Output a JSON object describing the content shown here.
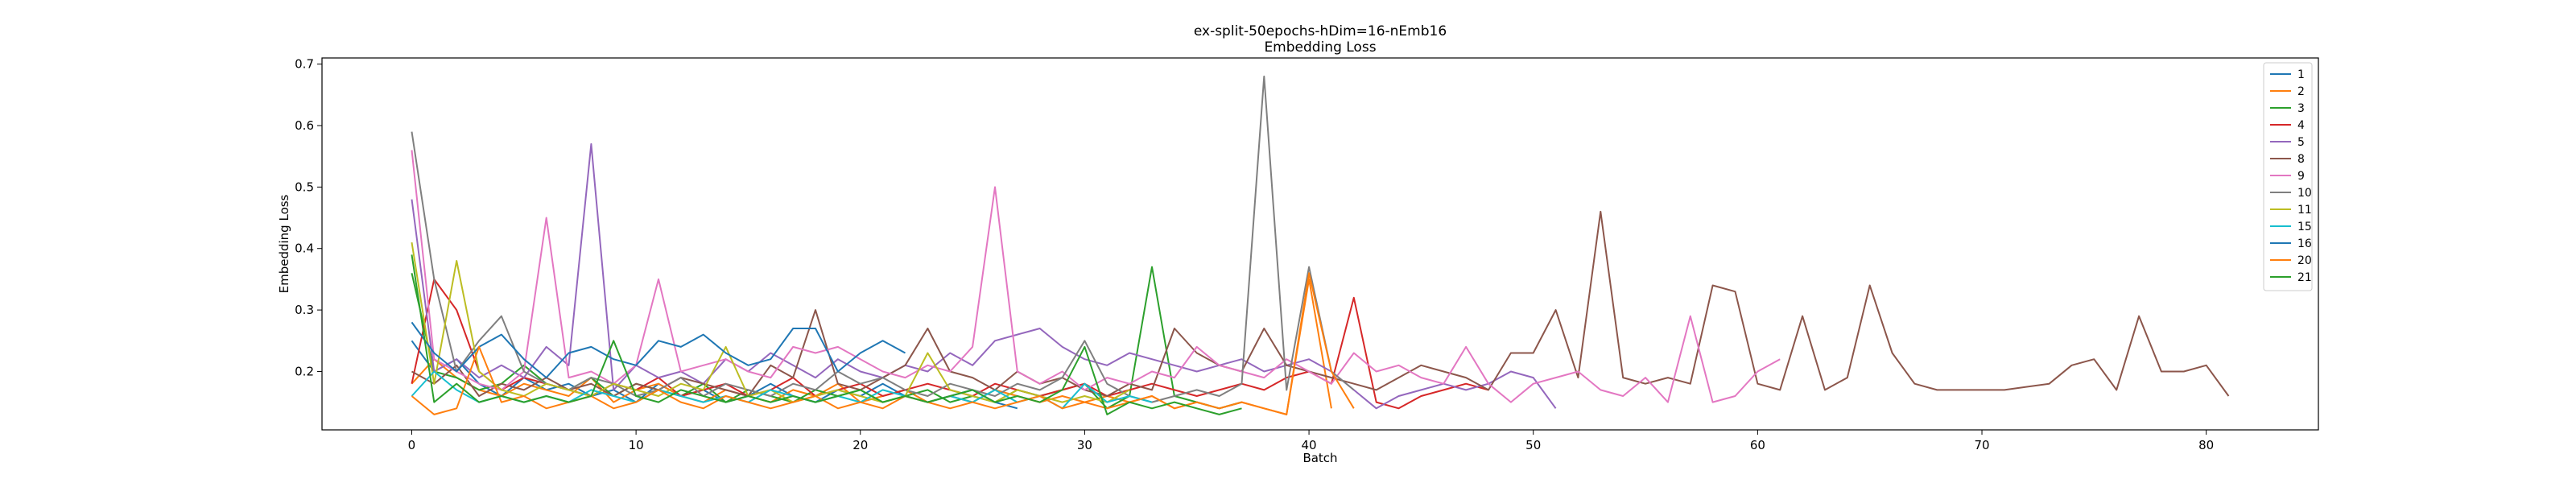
{
  "chart_data": {
    "type": "line",
    "title": "ex-split-50epochs-hDim=16-nEmb16",
    "subtitle": "Embedding Loss",
    "xlabel": "Batch",
    "ylabel": "Embedding Loss",
    "xlim": [
      -4,
      85
    ],
    "ylim": [
      0.105,
      0.71
    ],
    "xticks": [
      0,
      10,
      20,
      30,
      40,
      50,
      60,
      70,
      80
    ],
    "yticks": [
      0.2,
      0.3,
      0.4,
      0.5,
      0.6,
      0.7
    ],
    "grid": false,
    "legend_position": "top-right",
    "series": [
      {
        "name": "1",
        "color": "#1f77b4",
        "values": [
          0.25,
          0.2,
          0.22,
          0.18,
          0.16,
          0.19,
          0.17,
          0.18,
          0.16,
          0.17,
          0.15,
          0.18,
          0.16,
          0.17,
          0.15,
          0.16,
          0.18,
          0.16,
          0.15,
          0.17,
          0.16,
          0.18,
          0.16,
          0.15,
          0.16,
          0.17,
          0.15,
          0.14
        ]
      },
      {
        "name": "2",
        "color": "#ff7f0e",
        "values": [
          0.18,
          0.22,
          0.19,
          0.17,
          0.16,
          0.18,
          0.17,
          0.16,
          0.19,
          0.15,
          0.17,
          0.18,
          0.16,
          0.15,
          0.17,
          0.16,
          0.15,
          0.17,
          0.16,
          0.18,
          0.15,
          0.16,
          0.17,
          0.15,
          0.16,
          0.15,
          0.17,
          0.16,
          0.15,
          0.16,
          0.15,
          0.16,
          0.15,
          0.16,
          0.14,
          0.15,
          0.14,
          0.15,
          0.14,
          0.13,
          0.35,
          0.14
        ]
      },
      {
        "name": "3",
        "color": "#2ca02c",
        "values": [
          0.36,
          0.2,
          0.19,
          0.17,
          0.18,
          0.21,
          0.18,
          0.17,
          0.19,
          0.16,
          0.18,
          0.17,
          0.16,
          0.18,
          0.15,
          0.17,
          0.16,
          0.15,
          0.17,
          0.16,
          0.17,
          0.15,
          0.16,
          0.17,
          0.15,
          0.16,
          0.15,
          0.17,
          0.16,
          0.17,
          0.18,
          0.14,
          0.16,
          0.37,
          0.16,
          0.15,
          0.14,
          0.15
        ]
      },
      {
        "name": "4",
        "color": "#d62728",
        "values": [
          0.18,
          0.35,
          0.3,
          0.2,
          0.17,
          0.19,
          0.18,
          0.17,
          0.16,
          0.18,
          0.17,
          0.19,
          0.16,
          0.17,
          0.18,
          0.16,
          0.17,
          0.19,
          0.16,
          0.17,
          0.18,
          0.16,
          0.17,
          0.18,
          0.17,
          0.16,
          0.18,
          0.17,
          0.16,
          0.17,
          0.18,
          0.16,
          0.17,
          0.18,
          0.17,
          0.16,
          0.17,
          0.18,
          0.17,
          0.19,
          0.2,
          0.18,
          0.32,
          0.15,
          0.14,
          0.16,
          0.17,
          0.18,
          0.17
        ]
      },
      {
        "name": "5",
        "color": "#9467bd",
        "values": [
          0.48,
          0.2,
          0.22,
          0.19,
          0.21,
          0.19,
          0.24,
          0.21,
          0.57,
          0.17,
          0.21,
          0.19,
          0.2,
          0.18,
          0.22,
          0.2,
          0.23,
          0.21,
          0.19,
          0.22,
          0.2,
          0.19,
          0.21,
          0.2,
          0.23,
          0.21,
          0.25,
          0.26,
          0.27,
          0.24,
          0.22,
          0.21,
          0.23,
          0.22,
          0.21,
          0.2,
          0.21,
          0.22,
          0.2,
          0.21,
          0.22,
          0.2,
          0.17,
          0.14,
          0.16,
          0.17,
          0.18,
          0.17,
          0.18,
          0.2,
          0.19,
          0.14
        ]
      },
      {
        "name": "8",
        "color": "#8c564b",
        "values": [
          0.2,
          0.18,
          0.21,
          0.16,
          0.18,
          0.17,
          0.19,
          0.17,
          0.18,
          0.16,
          0.18,
          0.17,
          0.19,
          0.18,
          0.17,
          0.16,
          0.21,
          0.19,
          0.3,
          0.18,
          0.17,
          0.19,
          0.21,
          0.27,
          0.2,
          0.19,
          0.17,
          0.2,
          0.18,
          0.19,
          0.17,
          0.16,
          0.18,
          0.17,
          0.27,
          0.23,
          0.21,
          0.2,
          0.27,
          0.21,
          0.2,
          0.19,
          0.18,
          0.17,
          0.19,
          0.21,
          0.2,
          0.19,
          0.17,
          0.23,
          0.23,
          0.3,
          0.19,
          0.46,
          0.19,
          0.18,
          0.19,
          0.18,
          0.34,
          0.33,
          0.18,
          0.17,
          0.29,
          0.17,
          0.19,
          0.34,
          0.23,
          0.18,
          0.17,
          0.17,
          0.17,
          0.17,
          0.175,
          0.18,
          0.21,
          0.22,
          0.17,
          0.29,
          0.2,
          0.2,
          0.21,
          0.16
        ]
      },
      {
        "name": "9",
        "color": "#e377c2",
        "values": [
          0.56,
          0.22,
          0.2,
          0.18,
          0.17,
          0.2,
          0.45,
          0.19,
          0.2,
          0.18,
          0.21,
          0.35,
          0.2,
          0.21,
          0.22,
          0.2,
          0.19,
          0.24,
          0.23,
          0.24,
          0.22,
          0.2,
          0.19,
          0.21,
          0.2,
          0.24,
          0.5,
          0.2,
          0.18,
          0.2,
          0.17,
          0.19,
          0.18,
          0.2,
          0.19,
          0.24,
          0.21,
          0.2,
          0.19,
          0.22,
          0.2,
          0.18,
          0.23,
          0.2,
          0.21,
          0.19,
          0.18,
          0.24,
          0.18,
          0.15,
          0.18,
          0.19,
          0.2,
          0.17,
          0.16,
          0.19,
          0.15,
          0.29,
          0.15,
          0.16,
          0.2,
          0.22
        ]
      },
      {
        "name": "10",
        "color": "#7f7f7f",
        "values": [
          0.59,
          0.35,
          0.2,
          0.25,
          0.29,
          0.2,
          0.18,
          0.17,
          0.19,
          0.18,
          0.16,
          0.17,
          0.19,
          0.16,
          0.18,
          0.17,
          0.16,
          0.18,
          0.17,
          0.2,
          0.18,
          0.19,
          0.17,
          0.16,
          0.18,
          0.17,
          0.16,
          0.18,
          0.17,
          0.19,
          0.25,
          0.18,
          0.16,
          0.15,
          0.16,
          0.17,
          0.16,
          0.18,
          0.68,
          0.17,
          0.37,
          0.2,
          0.17
        ]
      },
      {
        "name": "11",
        "color": "#bcbd22",
        "values": [
          0.41,
          0.18,
          0.38,
          0.2,
          0.17,
          0.16,
          0.18,
          0.17,
          0.16,
          0.18,
          0.17,
          0.16,
          0.18,
          0.17,
          0.24,
          0.16,
          0.17,
          0.15,
          0.16,
          0.17,
          0.16,
          0.15,
          0.16,
          0.23,
          0.17,
          0.16,
          0.15,
          0.17,
          0.16,
          0.15,
          0.16,
          0.15,
          0.17
        ]
      },
      {
        "name": "15",
        "color": "#17becf",
        "values": [
          0.16,
          0.2,
          0.17,
          0.15,
          0.16,
          0.15,
          0.16,
          0.15,
          0.17,
          0.16,
          0.15,
          0.17,
          0.16,
          0.15,
          0.16,
          0.15,
          0.17,
          0.16,
          0.15,
          0.16,
          0.15,
          0.17,
          0.16,
          0.15,
          0.16,
          0.15,
          0.17,
          0.15,
          0.16,
          0.14,
          0.18,
          0.15,
          0.16,
          0.15
        ]
      },
      {
        "name": "16",
        "color": "#1f77b4",
        "values": [
          0.28,
          0.23,
          0.2,
          0.24,
          0.26,
          0.22,
          0.19,
          0.23,
          0.24,
          0.22,
          0.21,
          0.25,
          0.24,
          0.26,
          0.23,
          0.21,
          0.22,
          0.27,
          0.27,
          0.2,
          0.23,
          0.25,
          0.23
        ]
      },
      {
        "name": "20",
        "color": "#ff7f0e",
        "values": [
          0.16,
          0.13,
          0.14,
          0.24,
          0.15,
          0.16,
          0.14,
          0.15,
          0.16,
          0.14,
          0.15,
          0.17,
          0.15,
          0.14,
          0.16,
          0.15,
          0.14,
          0.15,
          0.16,
          0.14,
          0.15,
          0.14,
          0.16,
          0.15,
          0.14,
          0.15,
          0.14,
          0.15,
          0.16,
          0.14,
          0.15,
          0.14,
          0.15,
          0.16,
          0.14,
          0.15,
          0.14,
          0.15,
          0.14,
          0.13,
          0.36,
          0.2,
          0.14
        ]
      },
      {
        "name": "21",
        "color": "#2ca02c",
        "values": [
          0.39,
          0.15,
          0.18,
          0.15,
          0.16,
          0.15,
          0.16,
          0.15,
          0.16,
          0.25,
          0.16,
          0.15,
          0.17,
          0.16,
          0.15,
          0.16,
          0.15,
          0.16,
          0.15,
          0.16,
          0.17,
          0.15,
          0.16,
          0.15,
          0.16,
          0.17,
          0.15,
          0.16,
          0.15,
          0.17,
          0.24,
          0.13,
          0.15,
          0.14,
          0.15,
          0.14,
          0.13,
          0.14
        ]
      }
    ]
  }
}
